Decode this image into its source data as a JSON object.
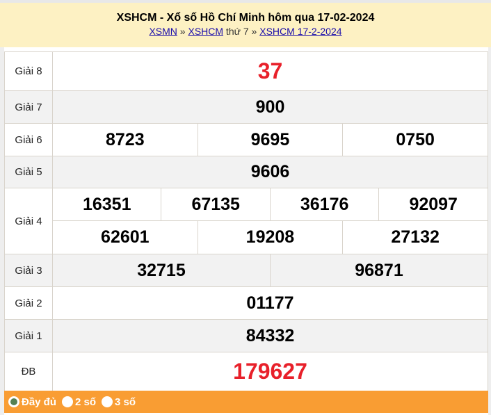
{
  "header": {
    "title": "XSHCM - Xổ số Hồ Chí Minh hôm qua 17-02-2024",
    "crumb_1": "XSMN",
    "sep_1": " » ",
    "crumb_2": "XSHCM",
    "crumb_2_suffix": " thứ 7",
    "sep_2": " » ",
    "crumb_3": "XSHCM 17-2-2024"
  },
  "prizes": {
    "g8": {
      "label": "Giải 8",
      "values": [
        "37"
      ]
    },
    "g7": {
      "label": "Giải 7",
      "values": [
        "900"
      ]
    },
    "g6": {
      "label": "Giải 6",
      "values": [
        "8723",
        "9695",
        "0750"
      ]
    },
    "g5": {
      "label": "Giải 5",
      "values": [
        "9606"
      ]
    },
    "g4": {
      "label": "Giải 4",
      "values": [
        "16351",
        "67135",
        "36176",
        "92097",
        "62601",
        "19208",
        "27132"
      ]
    },
    "g3": {
      "label": "Giải 3",
      "values": [
        "32715",
        "96871"
      ]
    },
    "g2": {
      "label": "Giải 2",
      "values": [
        "01177"
      ]
    },
    "g1": {
      "label": "Giải 1",
      "values": [
        "84332"
      ]
    },
    "db": {
      "label": "ĐB",
      "values": [
        "179627"
      ]
    }
  },
  "footer": {
    "options": [
      {
        "label": "Đầy đủ",
        "selected": true
      },
      {
        "label": "2 số",
        "selected": false
      },
      {
        "label": "3 số",
        "selected": false
      }
    ]
  },
  "colors": {
    "header_bg": "#fdf1c3",
    "footer_bg": "#f99d33",
    "highlight_red": "#e8202a",
    "radio_selected": "#558052"
  }
}
